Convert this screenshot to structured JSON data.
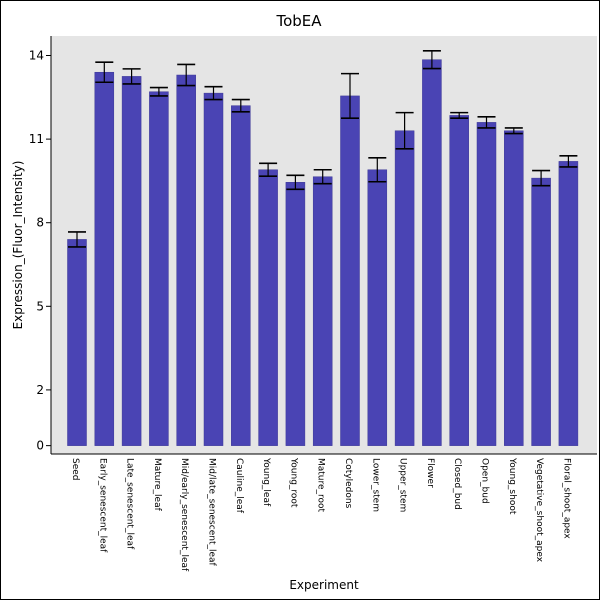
{
  "chart_data": {
    "type": "bar",
    "title": "TobEA",
    "xlabel": "Experiment",
    "ylabel": "Expression_(Fluor_Intensity)",
    "ylim": [
      -0.3,
      14.7
    ],
    "yticks": [
      0,
      2,
      5,
      8,
      11,
      14
    ],
    "grid": false,
    "bar_color": "#4a44b4",
    "plot_bg": "#e5e5e5",
    "categories": [
      "Seed",
      "Early_senescent_leaf",
      "Late_senescent_leaf",
      "Mature_leaf",
      "Mid/early_senescent_leaf",
      "Mid/late_senescent_leaf",
      "Cauline_leaf",
      "Young_leaf",
      "Young_root",
      "Mature_root",
      "Cotyledons",
      "Lower_stem",
      "Upper_stem",
      "Flower",
      "Closed_bud",
      "Open_bud",
      "Young_shoot",
      "Vegetative_shoot_apex",
      "Floral_shoot_apex"
    ],
    "values": [
      7.4,
      13.4,
      13.25,
      12.7,
      13.3,
      12.65,
      12.2,
      9.9,
      9.45,
      9.65,
      12.55,
      9.9,
      11.3,
      13.85,
      11.85,
      11.6,
      11.3,
      9.6,
      10.2
    ],
    "errors": [
      0.27,
      0.36,
      0.27,
      0.15,
      0.38,
      0.23,
      0.22,
      0.23,
      0.25,
      0.25,
      0.8,
      0.43,
      0.65,
      0.32,
      0.1,
      0.2,
      0.1,
      0.27,
      0.2
    ]
  }
}
